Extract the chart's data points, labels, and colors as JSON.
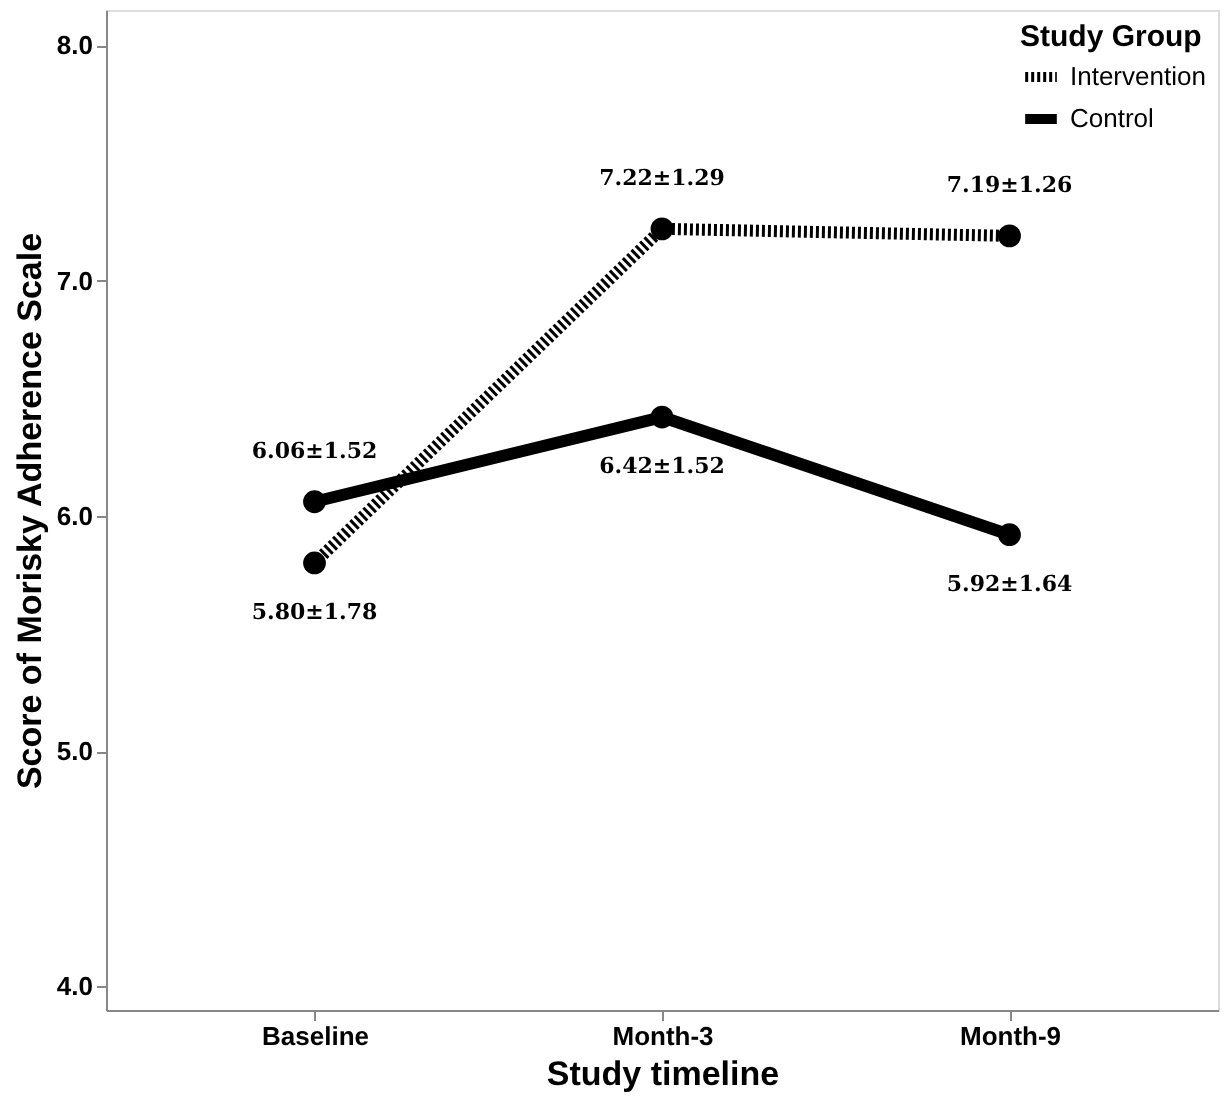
{
  "chart_data": {
    "type": "line",
    "xlabel": "Study timeline",
    "ylabel": "Score of Morisky Adherence Scale",
    "legend_title": "Study Group",
    "categories": [
      "Baseline",
      "Month-3",
      "Month-9"
    ],
    "series": [
      {
        "name": "Intervention",
        "color": "#000000",
        "line_style": "dotted",
        "values": [
          5.8,
          7.22,
          7.19
        ],
        "value_labels": [
          "5.80±1.78",
          "7.22±1.29",
          "7.19±1.26"
        ]
      },
      {
        "name": "Control",
        "color": "#000000",
        "line_style": "solid",
        "values": [
          6.06,
          6.42,
          5.92
        ],
        "value_labels": [
          "6.06±1.52",
          "6.42±1.52",
          "5.92±1.64"
        ]
      }
    ],
    "ylim": [
      3.9,
      8.15
    ],
    "yticks": [
      {
        "value": 4,
        "label": "4.0"
      },
      {
        "value": 5,
        "label": "5.0"
      },
      {
        "value": 6,
        "label": "6.0"
      },
      {
        "value": 7,
        "label": "7.0"
      },
      {
        "value": 8,
        "label": "8.0"
      }
    ],
    "marker": "circle",
    "legend": "top right",
    "grid": false
  }
}
